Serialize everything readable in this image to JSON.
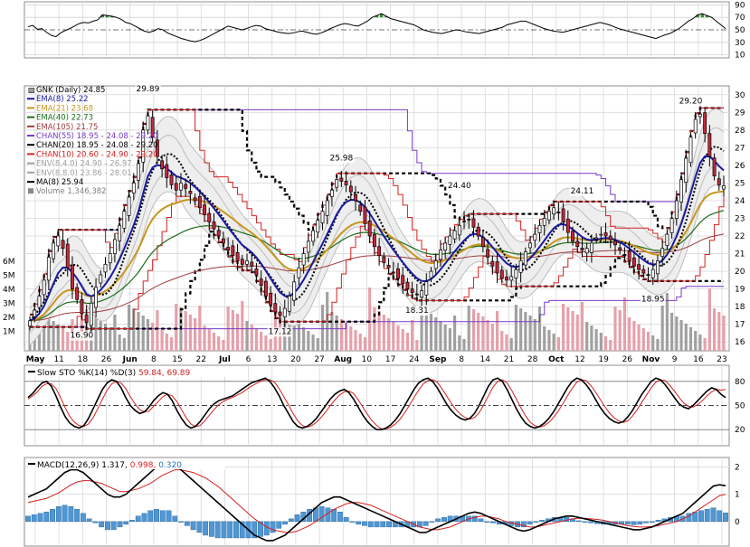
{
  "chart_data": {
    "type": "financial",
    "symbol": "GNK",
    "title": "GNK (Daily) 24.85",
    "panels": {
      "rsi": {
        "y_ticks": [
          "90",
          "70",
          "50",
          "30",
          "10"
        ],
        "values": [
          55,
          57,
          51,
          52,
          46,
          41,
          39,
          45,
          49,
          52,
          56,
          60,
          62,
          61,
          64,
          66,
          74,
          73,
          72,
          70,
          67,
          62,
          60,
          56,
          52,
          48,
          46,
          48,
          52,
          50,
          45,
          42,
          39,
          36,
          34,
          32,
          31,
          33,
          36,
          40,
          44,
          48,
          52,
          56,
          54,
          52,
          50,
          52,
          55,
          57,
          56,
          52,
          50,
          48,
          46,
          45,
          44,
          45,
          47,
          48,
          46,
          44,
          43,
          45,
          48,
          52,
          55,
          58,
          60,
          59,
          57,
          56,
          60,
          64,
          70,
          73,
          76,
          72,
          68,
          66,
          64,
          62,
          60,
          58,
          54,
          50,
          48,
          46,
          45,
          44,
          46,
          48,
          50,
          49,
          47,
          46,
          45,
          44,
          46,
          48,
          50,
          52,
          54,
          58,
          60,
          62,
          64,
          64,
          61,
          58,
          55,
          52,
          50,
          48,
          47,
          46,
          48,
          50,
          52,
          54,
          56,
          58,
          60,
          62,
          60,
          58,
          55,
          52,
          50,
          48,
          46,
          44,
          42,
          40,
          38,
          36,
          39,
          42,
          44,
          48,
          52,
          58,
          64,
          68,
          74,
          76,
          73,
          70,
          64,
          58,
          52
        ]
      },
      "price": {
        "legend": [
          "GNK (Daily) 24.85",
          "EMA(8) 25.22",
          "EMA(21) 23.68",
          "EMA(40) 22.73",
          "EMA(105) 21.75",
          "CHAN(55) 18.95 - 24.08 - 29.20",
          "CHAN(20) 18.95 - 24.08 - 29.20",
          "CHAN(10) 20.60 - 24.90 - 29.20",
          "ENV(8,4.0) 24.90 - 26.97",
          "ENV(8,8.0) 23.86 - 28.01",
          "MA(8) 25.94",
          "Volume 1,346,382"
        ],
        "legend_colors": [
          "#000000",
          "#1a1aa0",
          "#c8961e",
          "#1a6e1a",
          "#a03c3c",
          "#7a3ac8",
          "#000000",
          "#d42020",
          "#a0a0a0",
          "#a0a0a0",
          "#000000",
          "#808080"
        ],
        "y_ticks": [
          "30",
          "29",
          "28",
          "27",
          "26",
          "25",
          "24",
          "23",
          "22",
          "21",
          "20",
          "19",
          "18",
          "17",
          "16"
        ],
        "y_range": [
          15.5,
          30.5
        ],
        "volume_ticks": [
          "6M",
          "5M",
          "4M",
          "3M",
          "2M",
          "1M"
        ],
        "annotations": [
          "29.89",
          "25.98",
          "24.40",
          "24.11",
          "29.20",
          "16.90",
          "17.12",
          "18.31",
          "18.95"
        ],
        "x_labels": [
          "May",
          "11",
          "18",
          "26",
          "Jun",
          "8",
          "15",
          "22",
          "Jul",
          "6",
          "13",
          "20",
          "27",
          "Aug",
          "10",
          "17",
          "24",
          "Sep",
          "8",
          "14",
          "21",
          "28",
          "Oct",
          "12",
          "19",
          "26",
          "Nov",
          "9",
          "16",
          "23"
        ],
        "close": [
          17.2,
          17.8,
          18.6,
          19.5,
          20.8,
          21.6,
          22.0,
          21.3,
          20.2,
          19.0,
          18.4,
          17.6,
          17.1,
          18.2,
          19.1,
          19.8,
          20.4,
          21.0,
          21.8,
          22.6,
          23.4,
          24.2,
          25.0,
          26.1,
          28.0,
          28.8,
          27.6,
          26.5,
          25.8,
          25.3,
          24.9,
          24.6,
          25.0,
          24.7,
          24.4,
          24.0,
          23.6,
          23.2,
          22.8,
          22.4,
          22.0,
          21.6,
          21.2,
          20.9,
          20.6,
          20.4,
          20.6,
          20.3,
          19.8,
          19.2,
          18.6,
          18.1,
          17.7,
          17.5,
          17.9,
          18.6,
          19.4,
          20.2,
          21.0,
          21.7,
          22.3,
          22.9,
          23.4,
          24.0,
          24.6,
          25.2,
          25.1,
          24.9,
          24.5,
          24.0,
          23.4,
          22.7,
          22.0,
          21.4,
          20.9,
          20.5,
          20.2,
          19.9,
          19.6,
          19.3,
          19.0,
          18.8,
          18.7,
          18.9,
          19.4,
          20.0,
          20.6,
          21.2,
          21.6,
          22.0,
          22.3,
          22.6,
          22.8,
          22.9,
          22.5,
          22.0,
          21.4,
          20.8,
          20.3,
          19.9,
          19.6,
          19.5,
          19.7,
          20.1,
          20.6,
          21.1,
          21.6,
          22.1,
          22.6,
          23.0,
          23.4,
          23.6,
          23.3,
          22.8,
          22.2,
          21.7,
          21.4,
          21.2,
          21.3,
          21.6,
          21.9,
          22.1,
          22.0,
          21.8,
          21.5,
          21.2,
          20.9,
          20.6,
          20.3,
          20.1,
          19.9,
          19.8,
          20.1,
          20.6,
          21.3,
          22.1,
          23.0,
          24.0,
          25.2,
          26.4,
          27.6,
          28.6,
          28.9,
          27.8,
          26.5,
          25.4,
          24.9,
          24.85
        ]
      },
      "stoch": {
        "title": "Slow STO %K(14) %D(3) 59.84, 69.89",
        "y_ticks": [
          "80",
          "50",
          "20"
        ],
        "k": [
          60,
          65,
          72,
          78,
          80,
          74,
          62,
          48,
          36,
          28,
          24,
          22,
          25,
          34,
          46,
          58,
          70,
          78,
          82,
          80,
          72,
          60,
          50,
          44,
          40,
          42,
          48,
          56,
          62,
          66,
          64,
          56,
          44,
          34,
          26,
          22,
          24,
          30,
          38,
          46,
          52,
          56,
          58,
          60,
          62,
          66,
          70,
          74,
          78,
          80,
          82,
          84,
          80,
          72,
          62,
          50,
          40,
          30,
          24,
          22,
          24,
          28,
          34,
          42,
          50,
          58,
          64,
          68,
          70,
          66,
          58,
          48,
          38,
          30,
          24,
          20,
          20,
          22,
          26,
          32,
          40,
          50,
          60,
          70,
          78,
          82,
          84,
          80,
          72,
          62,
          52,
          44,
          38,
          34,
          32,
          34,
          40,
          50,
          62,
          74,
          82,
          84,
          80,
          70,
          58,
          46,
          36,
          28,
          24,
          22,
          24,
          28,
          34,
          42,
          52,
          62,
          72,
          80,
          84,
          82,
          76,
          68,
          58,
          48,
          40,
          34,
          30,
          28,
          30,
          36,
          44,
          54,
          64,
          72,
          80,
          84,
          82,
          76,
          68,
          60,
          52,
          48,
          46,
          50,
          56,
          62,
          68,
          72,
          70,
          64,
          59.84
        ],
        "d": [
          58,
          62,
          67,
          74,
          77,
          77,
          71,
          60,
          47,
          36,
          29,
          25,
          24,
          27,
          35,
          46,
          58,
          69,
          77,
          80,
          78,
          71,
          61,
          52,
          45,
          42,
          43,
          49,
          55,
          61,
          64,
          62,
          55,
          45,
          35,
          27,
          24,
          25,
          31,
          38,
          45,
          51,
          55,
          58,
          60,
          63,
          66,
          70,
          74,
          77,
          80,
          82,
          82,
          79,
          71,
          61,
          51,
          40,
          31,
          25,
          23,
          25,
          29,
          35,
          42,
          50,
          57,
          63,
          67,
          68,
          65,
          57,
          48,
          39,
          31,
          25,
          21,
          21,
          23,
          27,
          33,
          41,
          50,
          60,
          69,
          77,
          81,
          82,
          79,
          71,
          62,
          53,
          45,
          39,
          35,
          33,
          35,
          41,
          51,
          62,
          73,
          80,
          82,
          78,
          69,
          58,
          47,
          37,
          29,
          25,
          23,
          25,
          29,
          35,
          43,
          52,
          62,
          71,
          79,
          82,
          81,
          75,
          67,
          58,
          49,
          41,
          35,
          31,
          29,
          31,
          37,
          45,
          54,
          63,
          72,
          79,
          82,
          81,
          75,
          68,
          60,
          53,
          49,
          48,
          51,
          56,
          62,
          67,
          70,
          69,
          69.89
        ]
      },
      "macd": {
        "title": "MACD(12,26,9) 1.317, 0.998, 0.320",
        "y_ticks": [
          "2",
          "1",
          "0"
        ],
        "macd": [
          0.9,
          1.0,
          1.1,
          1.2,
          1.4,
          1.6,
          1.8,
          1.9,
          1.9,
          1.8,
          1.6,
          1.4,
          1.2,
          1.0,
          0.9,
          0.9,
          1.0,
          1.2,
          1.4,
          1.6,
          1.8,
          2.0,
          2.1,
          2.2,
          2.1,
          1.9,
          1.7,
          1.5,
          1.3,
          1.1,
          0.9,
          0.7,
          0.5,
          0.3,
          0.1,
          -0.1,
          -0.3,
          -0.5,
          -0.6,
          -0.7,
          -0.7,
          -0.6,
          -0.5,
          -0.3,
          -0.1,
          0.1,
          0.3,
          0.5,
          0.7,
          0.8,
          0.9,
          0.9,
          0.8,
          0.7,
          0.6,
          0.5,
          0.4,
          0.3,
          0.2,
          0.1,
          0.0,
          -0.1,
          -0.2,
          -0.3,
          -0.4,
          -0.4,
          -0.3,
          -0.2,
          -0.1,
          0.0,
          0.1,
          0.2,
          0.3,
          0.35,
          0.3,
          0.2,
          0.1,
          0.0,
          -0.1,
          -0.2,
          -0.3,
          -0.35,
          -0.3,
          -0.2,
          -0.1,
          0.0,
          0.1,
          0.15,
          0.2,
          0.2,
          0.15,
          0.1,
          0.05,
          0.0,
          -0.05,
          -0.1,
          -0.15,
          -0.2,
          -0.25,
          -0.3,
          -0.3,
          -0.25,
          -0.2,
          -0.1,
          0.0,
          0.1,
          0.2,
          0.3,
          0.5,
          0.7,
          0.9,
          1.1,
          1.3,
          1.35,
          1.317
        ],
        "signal": [
          0.7,
          0.75,
          0.8,
          0.85,
          0.95,
          1.05,
          1.2,
          1.35,
          1.45,
          1.5,
          1.5,
          1.45,
          1.4,
          1.3,
          1.2,
          1.1,
          1.1,
          1.15,
          1.2,
          1.3,
          1.4,
          1.55,
          1.7,
          1.8,
          1.9,
          1.9,
          1.85,
          1.8,
          1.7,
          1.6,
          1.45,
          1.3,
          1.1,
          0.9,
          0.7,
          0.5,
          0.3,
          0.1,
          -0.05,
          -0.2,
          -0.3,
          -0.35,
          -0.4,
          -0.4,
          -0.35,
          -0.25,
          -0.15,
          0.0,
          0.15,
          0.3,
          0.45,
          0.55,
          0.65,
          0.7,
          0.7,
          0.65,
          0.6,
          0.5,
          0.4,
          0.3,
          0.2,
          0.1,
          0.0,
          -0.1,
          -0.2,
          -0.25,
          -0.3,
          -0.3,
          -0.25,
          -0.2,
          -0.1,
          0.0,
          0.1,
          0.15,
          0.2,
          0.2,
          0.15,
          0.1,
          0.0,
          -0.05,
          -0.1,
          -0.15,
          -0.2,
          -0.2,
          -0.15,
          -0.1,
          -0.05,
          0.0,
          0.05,
          0.1,
          0.12,
          0.12,
          0.1,
          0.08,
          0.05,
          0.0,
          -0.05,
          -0.1,
          -0.15,
          -0.18,
          -0.2,
          -0.2,
          -0.18,
          -0.15,
          -0.1,
          -0.05,
          0.0,
          0.1,
          0.2,
          0.35,
          0.5,
          0.65,
          0.8,
          0.95,
          0.998
        ]
      }
    },
    "colors": {
      "up": "#ffffff",
      "down": "#c8283c",
      "volume_up": "#a0a0a0",
      "volume_down": "#e6a0aa",
      "ema8": "#1a1aa0",
      "ema21": "#c8961e",
      "ema40": "#1a6e1a",
      "ema105": "#a03c3c",
      "chan55": "#7a3ac8",
      "chan20": "#000000",
      "chan10": "#d42020",
      "env": "#bdbdbd",
      "macd_hist": "#4f97d4",
      "macd_hist_border": "#1f5d96",
      "rsi_over": "#3c8c3c",
      "rsi_under": "#c84a4a",
      "grid": "#d8d8d8"
    }
  }
}
